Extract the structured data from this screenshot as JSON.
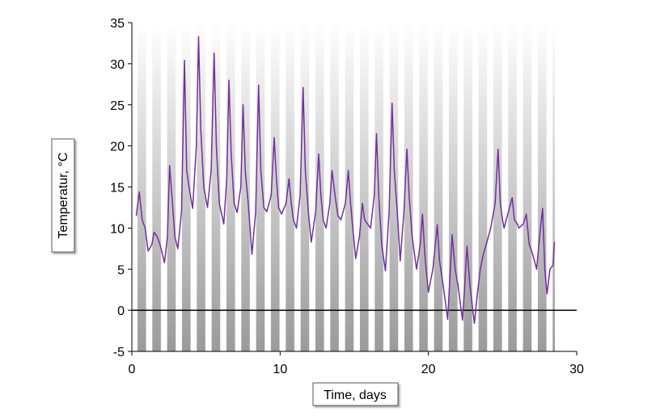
{
  "chart_data": {
    "type": "line",
    "xlabel": "Time, days",
    "ylabel": "Temperatur, °C",
    "xlim": [
      0,
      30
    ],
    "xticks": [
      0,
      10,
      20,
      30
    ],
    "ylim": [
      -5,
      35
    ],
    "yticks": [
      -5,
      0,
      5,
      10,
      15,
      20,
      25,
      30,
      35
    ],
    "x": [
      0.3,
      0.5,
      0.7,
      0.9,
      1.1,
      1.35,
      1.5,
      1.7,
      1.9,
      2.2,
      2.4,
      2.55,
      2.7,
      2.9,
      3.1,
      3.35,
      3.55,
      3.7,
      3.9,
      4.1,
      4.35,
      4.5,
      4.65,
      4.85,
      5.1,
      5.35,
      5.55,
      5.7,
      5.9,
      6.2,
      6.4,
      6.55,
      6.7,
      6.9,
      7.1,
      7.35,
      7.5,
      7.65,
      7.85,
      8.1,
      8.35,
      8.55,
      8.7,
      8.9,
      9.1,
      9.4,
      9.6,
      9.75,
      9.9,
      10.1,
      10.4,
      10.6,
      10.75,
      10.9,
      11.1,
      11.35,
      11.55,
      11.7,
      11.9,
      12.1,
      12.4,
      12.6,
      12.75,
      12.9,
      13.1,
      13.35,
      13.5,
      13.7,
      13.9,
      14.1,
      14.4,
      14.6,
      14.75,
      14.9,
      15.1,
      15.35,
      15.55,
      15.7,
      15.9,
      16.1,
      16.35,
      16.5,
      16.65,
      16.85,
      17.1,
      17.35,
      17.55,
      17.7,
      17.9,
      18.1,
      18.35,
      18.55,
      18.7,
      18.9,
      19.2,
      19.45,
      19.6,
      19.75,
      19.9,
      20.0,
      20.3,
      20.6,
      20.75,
      21.0,
      21.3,
      21.45,
      21.6,
      21.8,
      22.0,
      22.3,
      22.45,
      22.6,
      22.8,
      23.1,
      23.3,
      23.5,
      23.7,
      23.9,
      24.2,
      24.5,
      24.7,
      24.85,
      25.0,
      25.1,
      25.4,
      25.65,
      25.8,
      26.0,
      26.1,
      26.4,
      26.6,
      26.8,
      27.0,
      27.3,
      27.5,
      27.7,
      27.85,
      28.0,
      28.2,
      28.4,
      28.5
    ],
    "series": [
      {
        "color": "#7030a0",
        "values": [
          11.5,
          14.4,
          11,
          10,
          7.2,
          8,
          9.5,
          9,
          8,
          5.8,
          9,
          17.6,
          14,
          9,
          7.5,
          12,
          30.4,
          17,
          14.5,
          12.4,
          20,
          33.3,
          22,
          15,
          12.5,
          17,
          31.3,
          20,
          13,
          10.5,
          16,
          28,
          19,
          13,
          11.9,
          15,
          25,
          17,
          13,
          6.8,
          12,
          27.4,
          17,
          12.5,
          12,
          14,
          21,
          16,
          12.5,
          11.7,
          13,
          16,
          13,
          11,
          10,
          14,
          27.1,
          17,
          12,
          8.3,
          12,
          19,
          14,
          11,
          10,
          13,
          17,
          14,
          11.5,
          11,
          13,
          17,
          13,
          10,
          6.3,
          9,
          13,
          11,
          10.5,
          10,
          14,
          21.5,
          14,
          8,
          4.8,
          12,
          25.2,
          17,
          12,
          6,
          12,
          19.6,
          14,
          9,
          5,
          8,
          11.7,
          7,
          4,
          2.2,
          5,
          10.4,
          6,
          3,
          -1.1,
          4,
          9.2,
          5,
          3,
          -1.2,
          3,
          7.8,
          3,
          -1.6,
          2,
          5,
          6.8,
          8,
          10,
          13,
          19.6,
          13,
          11,
          10,
          12,
          13.7,
          11,
          10.5,
          10,
          10.5,
          11.7,
          8,
          7,
          5,
          9,
          12.4,
          5,
          2,
          5,
          5.5,
          8.3
        ]
      }
    ]
  }
}
